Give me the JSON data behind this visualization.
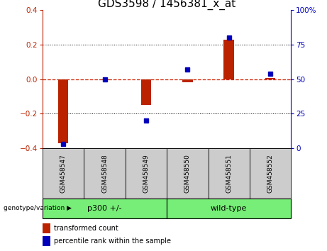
{
  "title": "GDS3598 / 1456381_x_at",
  "samples": [
    "GSM458547",
    "GSM458548",
    "GSM458549",
    "GSM458550",
    "GSM458551",
    "GSM458552"
  ],
  "red_values": [
    -0.37,
    -0.005,
    -0.15,
    -0.02,
    0.23,
    0.005
  ],
  "blue_values": [
    3,
    50,
    20,
    57,
    80,
    54
  ],
  "ylim_left": [
    -0.4,
    0.4
  ],
  "ylim_right": [
    0,
    100
  ],
  "yticks_left": [
    -0.4,
    -0.2,
    0.0,
    0.2,
    0.4
  ],
  "yticks_right": [
    0,
    25,
    50,
    75,
    100
  ],
  "group_label": "genotype/variation",
  "legend_red": "transformed count",
  "legend_blue": "percentile rank within the sample",
  "red_color": "#bb2200",
  "blue_color": "#0000bb",
  "zero_line_color": "#cc2200",
  "title_fontsize": 11,
  "tick_fontsize": 7.5,
  "legend_fontsize": 7,
  "bar_width": 0.25
}
